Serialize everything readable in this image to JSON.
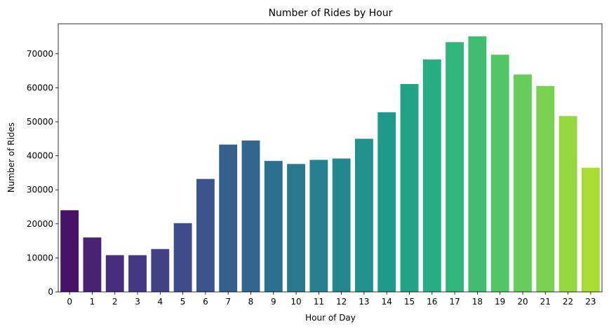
{
  "chart_data": {
    "type": "bar",
    "title": "Number of Rides by Hour",
    "xlabel": "Hour of Day",
    "ylabel": "Number of Rides",
    "categories": [
      "0",
      "1",
      "2",
      "3",
      "4",
      "5",
      "6",
      "7",
      "8",
      "9",
      "10",
      "11",
      "12",
      "13",
      "14",
      "15",
      "16",
      "17",
      "18",
      "19",
      "20",
      "21",
      "22",
      "23"
    ],
    "values": [
      24000,
      16000,
      10800,
      10800,
      12600,
      20200,
      33200,
      43300,
      44500,
      38500,
      37600,
      38800,
      39200,
      45000,
      52800,
      61100,
      68300,
      73400,
      75100,
      69700,
      63900,
      60500,
      51700,
      36500
    ],
    "ylim": [
      0,
      78800
    ],
    "yticks": [
      0,
      10000,
      20000,
      30000,
      40000,
      50000,
      60000,
      70000
    ],
    "ytick_labels": [
      "0",
      "10000",
      "20000",
      "30000",
      "40000",
      "50000",
      "60000",
      "70000"
    ],
    "grid": false,
    "legend": "none",
    "palette": "viridis",
    "colors": [
      "#471365",
      "#482374",
      "#472e7c",
      "#453882",
      "#424186",
      "#3e4c8a",
      "#3a548c",
      "#355e8d",
      "#31668e",
      "#2d6f8e",
      "#2a788e",
      "#27808e",
      "#24878e",
      "#21918c",
      "#1f998a",
      "#20a386",
      "#26ad81",
      "#31b57b",
      "#40bd72",
      "#52c569",
      "#67cc5c",
      "#7ad151",
      "#95d840",
      "#aadc32"
    ]
  }
}
